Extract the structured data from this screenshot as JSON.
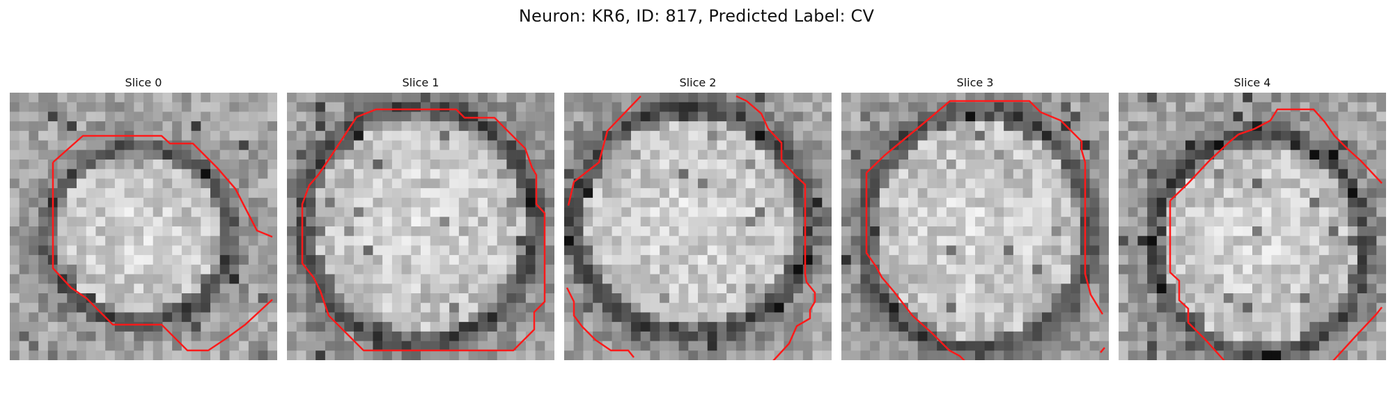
{
  "figure": {
    "title": "Neuron: KR6, ID: 817, Predicted Label: CV"
  },
  "panels": [
    {
      "title": "Slice 0",
      "seed": 11
    },
    {
      "title": "Slice 1",
      "seed": 23
    },
    {
      "title": "Slice 2",
      "seed": 37
    },
    {
      "title": "Slice 3",
      "seed": 51
    },
    {
      "title": "Slice 4",
      "seed": 67
    }
  ],
  "colors": {
    "contour": "#ff1a1a",
    "background": "#ffffff"
  }
}
